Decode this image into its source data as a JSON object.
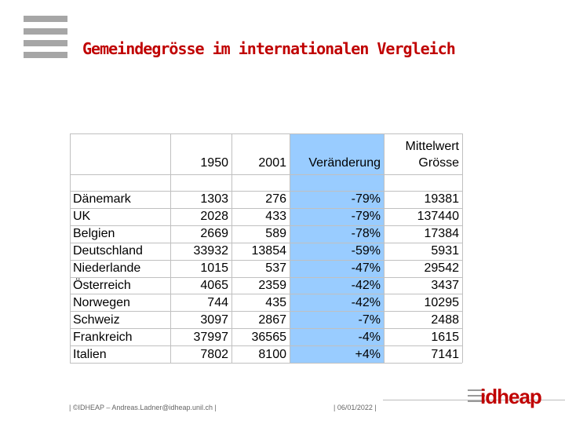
{
  "header": {
    "title": "Gemeindegrösse im internationalen Vergleich"
  },
  "table": {
    "columns": [
      "",
      "1950",
      "2001",
      "Veränderung",
      "Mittelwert\nGrösse"
    ],
    "rows": [
      [
        "Dänemark",
        "1303",
        "276",
        "-79%",
        "19381"
      ],
      [
        "UK",
        "2028",
        "433",
        "-79%",
        "137440"
      ],
      [
        "Belgien",
        "2669",
        "589",
        "-78%",
        "17384"
      ],
      [
        "Deutschland",
        "33932",
        "13854",
        "-59%",
        "5931"
      ],
      [
        "Niederlande",
        "1015",
        "537",
        "-47%",
        "29542"
      ],
      [
        "Österreich",
        "4065",
        "2359",
        "-42%",
        "3437"
      ],
      [
        "Norwegen",
        "744",
        "435",
        "-42%",
        "10295"
      ],
      [
        "Schweiz",
        "3097",
        "2867",
        "-7%",
        "2488"
      ],
      [
        "Frankreich",
        "37997",
        "36565",
        "-4%",
        "1615"
      ],
      [
        "Italien",
        "7802",
        "8100",
        "+4%",
        "7141"
      ]
    ]
  },
  "footer": {
    "copyright": "| ©IDHEAP – Andreas.Ladner@idheap.unil.ch |",
    "date": "| 06/01/2022 |",
    "logo": "idheap"
  }
}
